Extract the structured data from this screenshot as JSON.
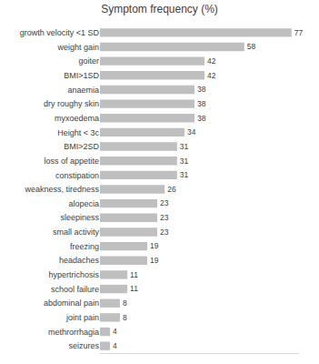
{
  "chart_data": {
    "type": "bar",
    "title": "Symptom frequency (%)",
    "orientation": "horizontal",
    "categories": [
      "growth velocity <1 SD",
      "weight gain",
      "goiter",
      "BMI>1SD",
      "anaemia",
      "dry roughy skin",
      "myxoedema",
      "Height < 3c",
      "BMI>2SD",
      "loss of appetite",
      "constipation",
      "weakness, tiredness",
      "alopecia",
      "sleepiness",
      "small activity",
      "freezing",
      "headaches",
      "hypertrichosis",
      "school failure",
      "abdominal pain",
      "joint pain",
      "methrorrhagia",
      "seizures"
    ],
    "values": [
      77,
      58,
      42,
      42,
      38,
      38,
      38,
      34,
      31,
      31,
      31,
      26,
      23,
      23,
      23,
      19,
      19,
      11,
      11,
      8,
      8,
      4,
      4
    ],
    "color": "#bfbfbf",
    "xlim": [
      0,
      80
    ],
    "data_labels": true,
    "tick_labels": "y",
    "grid": false
  }
}
